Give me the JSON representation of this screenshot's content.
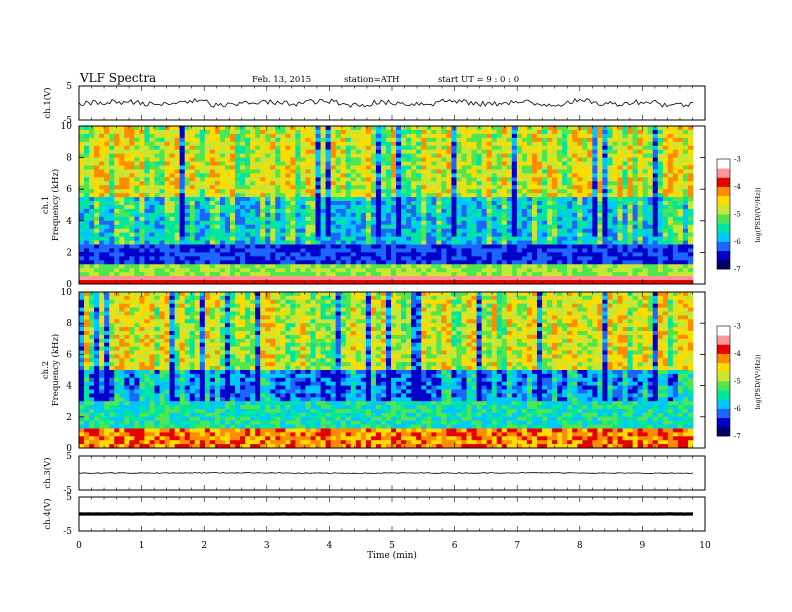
{
  "header": {
    "title": "VLF  Spectra",
    "date": "Feb. 13, 2015",
    "station": "station=ATH",
    "start": "start  UT  =   9  : 0  : 0"
  },
  "colors": {
    "spectrogram_palette": [
      "#000060",
      "#0000c8",
      "#1e64ff",
      "#00c8ff",
      "#00e6a0",
      "#50e650",
      "#c8e632",
      "#ffdc00",
      "#ff8c00",
      "#e60000",
      "#ff9696",
      "#ffffff"
    ]
  },
  "chart_data": [
    {
      "type": "line",
      "name": "channel-1-waveform",
      "ylabel": "ch.1(V)",
      "yticks": [
        "5",
        "-5"
      ],
      "ylim": [
        -5,
        5
      ],
      "x_range_min": [
        0,
        9.8
      ],
      "values": [
        0.0,
        0.3,
        -0.4,
        0.5,
        -0.6,
        0.2,
        -0.1,
        0.4,
        -0.5,
        0.1,
        -0.2,
        0.6,
        -0.3,
        0.2,
        -0.4,
        0.5,
        -0.2,
        0.3,
        -0.5,
        0.1
      ]
    },
    {
      "type": "heatmap",
      "name": "channel-1-spectrogram",
      "ylabel_line1": "ch.1",
      "ylabel_line2": "Frequency  (kHz)",
      "yticks": [
        "0",
        "2",
        "4",
        "6",
        "8",
        "10"
      ],
      "ylim": [
        0,
        10
      ],
      "xlim": [
        0,
        9.8
      ],
      "colorbar": {
        "label": "log(PSD/(V²/Hz))",
        "ticks": [
          "-3",
          "-4",
          "-5",
          "-6",
          "-7"
        ],
        "range": [
          -7,
          -3
        ]
      }
    },
    {
      "type": "heatmap",
      "name": "channel-2-spectrogram",
      "ylabel_line1": "ch.2",
      "ylabel_line2": "Frequency  (kHz)",
      "yticks": [
        "0",
        "2",
        "4",
        "6",
        "8",
        "10"
      ],
      "ylim": [
        0,
        10
      ],
      "xlim": [
        0,
        9.8
      ],
      "colorbar": {
        "label": "log(PSD/(V²/Hz))",
        "ticks": [
          "-3",
          "-4",
          "-5",
          "-6",
          "-7"
        ],
        "range": [
          -7,
          -3
        ]
      }
    },
    {
      "type": "line",
      "name": "channel-3-waveform",
      "ylabel": "ch.3(V)",
      "yticks": [
        "5",
        "-5"
      ],
      "ylim": [
        -5,
        5
      ],
      "values": [
        0.0,
        0.05,
        -0.05,
        0.0,
        0.05,
        -0.05,
        0.0
      ]
    },
    {
      "type": "line",
      "name": "channel-4-waveform",
      "ylabel": "ch.4(V)",
      "yticks": [
        "5",
        "-5"
      ],
      "ylim": [
        -5,
        5
      ],
      "values": [
        0.0,
        0.0,
        0.0,
        0.0
      ]
    }
  ],
  "x_axis": {
    "label": "Time  (min)",
    "ticks": [
      "0",
      "1",
      "2",
      "3",
      "4",
      "5",
      "6",
      "7",
      "8",
      "9",
      "10"
    ],
    "xlim": [
      0,
      10
    ]
  }
}
